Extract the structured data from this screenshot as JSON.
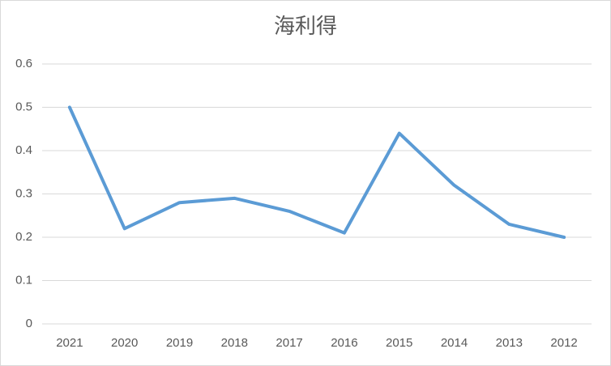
{
  "chart_data": {
    "type": "line",
    "title": "海利得",
    "categories": [
      "2021",
      "2020",
      "2019",
      "2018",
      "2017",
      "2016",
      "2015",
      "2014",
      "2013",
      "2012"
    ],
    "values": [
      0.5,
      0.22,
      0.28,
      0.29,
      0.26,
      0.21,
      0.44,
      0.32,
      0.23,
      0.2
    ],
    "color": "#5b9bd5",
    "ylim": [
      0,
      0.6
    ],
    "yticks": [
      0,
      0.1,
      0.2,
      0.3,
      0.4,
      0.5,
      0.6
    ],
    "grid": true
  }
}
